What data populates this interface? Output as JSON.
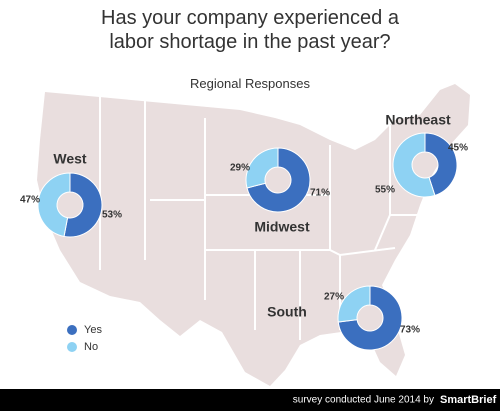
{
  "header": {
    "title": "Has your company experienced a labor shortage in the past year?",
    "subtitle": "Regional Responses"
  },
  "chart_data": [
    {
      "type": "donut",
      "title": "West",
      "categories": [
        "Yes",
        "No"
      ],
      "values": [
        53,
        47
      ],
      "value_labels": [
        "53%",
        "47%"
      ],
      "colors": [
        "#3b6fbf",
        "#8ed2f3"
      ]
    },
    {
      "type": "donut",
      "title": "Midwest",
      "categories": [
        "Yes",
        "No"
      ],
      "values": [
        71,
        29
      ],
      "value_labels": [
        "71%",
        "29%"
      ],
      "colors": [
        "#3b6fbf",
        "#8ed2f3"
      ]
    },
    {
      "type": "donut",
      "title": "Northeast",
      "categories": [
        "Yes",
        "No"
      ],
      "values": [
        45,
        55
      ],
      "value_labels": [
        "45%",
        "55%"
      ],
      "colors": [
        "#3b6fbf",
        "#8ed2f3"
      ]
    },
    {
      "type": "donut",
      "title": "South",
      "categories": [
        "Yes",
        "No"
      ],
      "values": [
        73,
        27
      ],
      "value_labels": [
        "73%",
        "27%"
      ],
      "colors": [
        "#3b6fbf",
        "#8ed2f3"
      ]
    }
  ],
  "footer": {
    "text": "survey conducted June 2014 by",
    "brand": "SmartBrief"
  }
}
